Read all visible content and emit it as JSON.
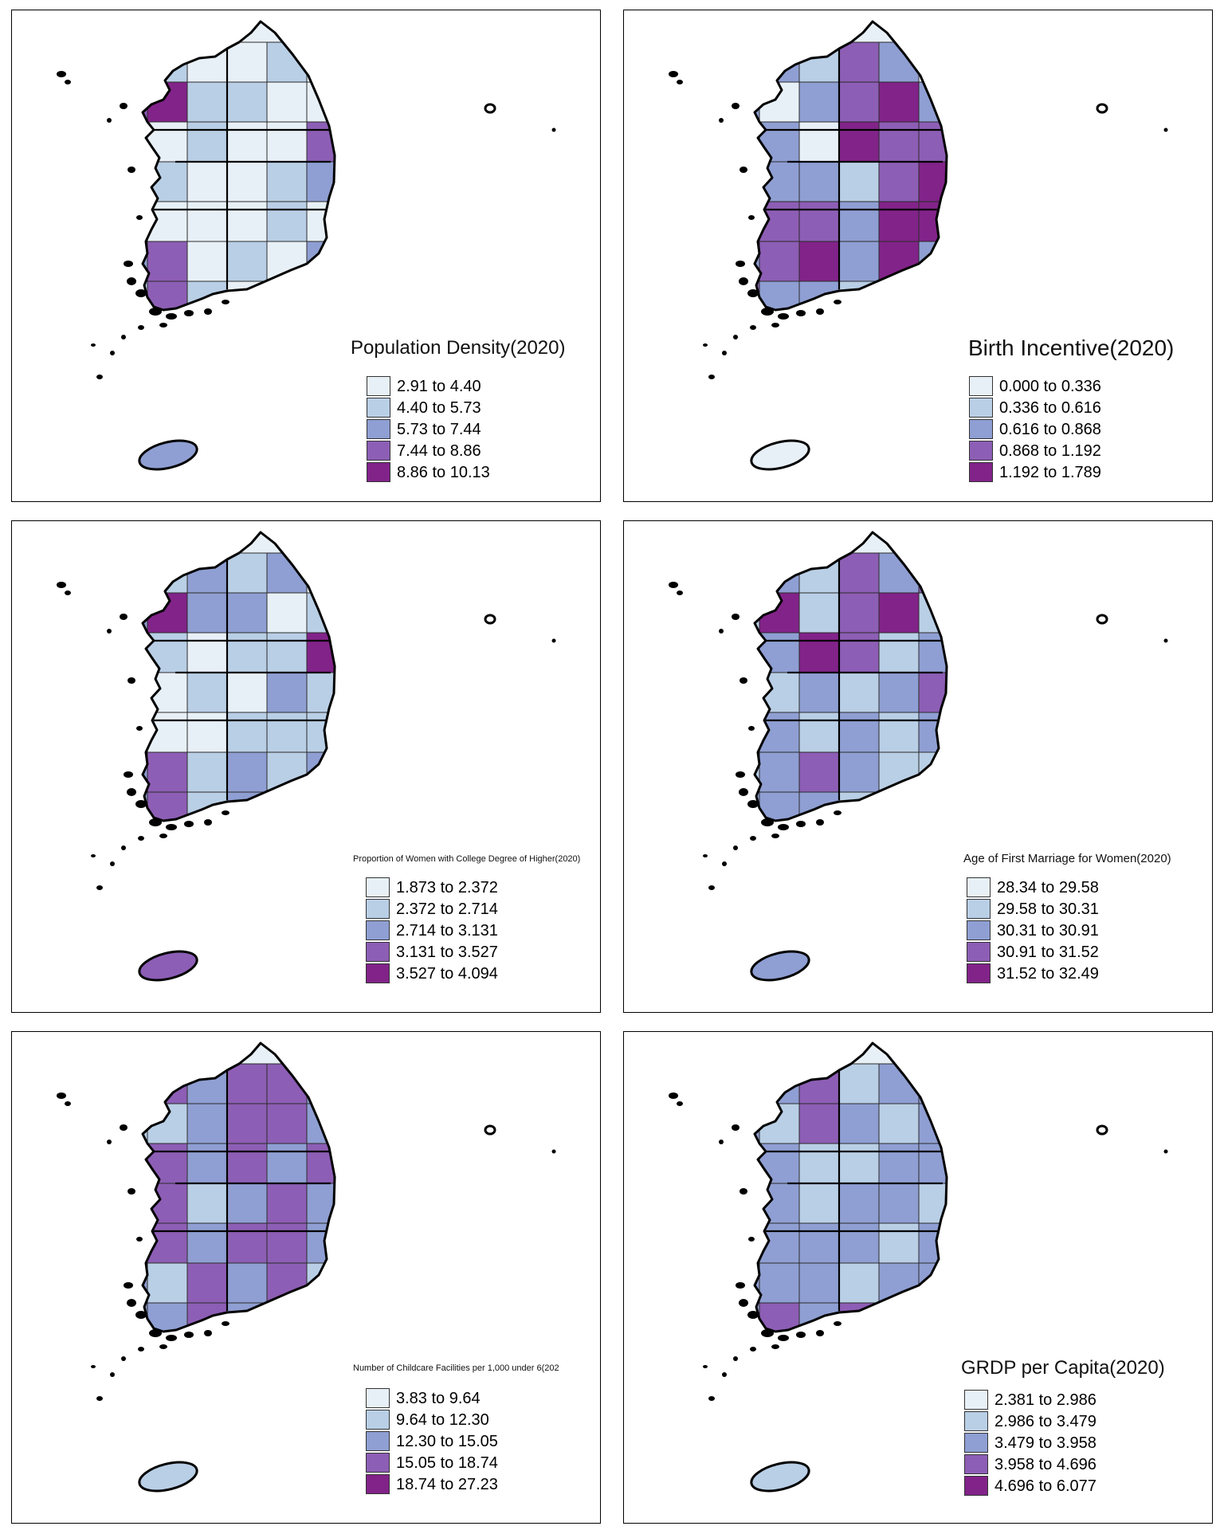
{
  "palette": [
    "#e8f0f7",
    "#b9cfe6",
    "#8f9fd3",
    "#8d5eb5",
    "#822389"
  ],
  "maps": [
    {
      "title": "Population Density(2020)",
      "legend": [
        "2.91 to 4.40",
        "4.40 to 5.73",
        "5.73 to 7.44",
        "7.44 to 8.86",
        "8.86 to 10.13"
      ],
      "regions": [
        1,
        0,
        0,
        1,
        0,
        3,
        4,
        1,
        1,
        0,
        0,
        1,
        0,
        1,
        0,
        0,
        3,
        1,
        0,
        0,
        1,
        2,
        1,
        0,
        0,
        0,
        1,
        0,
        2,
        3,
        0,
        1,
        0,
        2,
        1,
        3
      ],
      "jeju": 2
    },
    {
      "title": "Birth Incentive(2020)",
      "legend": [
        "0.000 to 0.336",
        "0.336 to 0.616",
        "0.616 to 0.868",
        "0.868 to 1.192",
        "1.192 to 1.789"
      ],
      "regions": [
        2,
        1,
        3,
        2,
        0,
        2,
        0,
        2,
        3,
        4,
        2,
        1,
        2,
        0,
        4,
        3,
        3,
        2,
        2,
        1,
        3,
        4,
        2,
        3,
        3,
        2,
        4,
        4,
        2,
        3,
        4,
        2,
        4,
        2,
        3,
        2
      ],
      "jeju": 0
    },
    {
      "title": "Proportion of Women with College Degree of Higher(2020)",
      "legend": [
        "1.873 to 2.372",
        "2.372 to 2.714",
        "2.714 to 3.131",
        "3.131 to 3.527",
        "3.527 to 4.094"
      ],
      "regions": [
        1,
        2,
        1,
        2,
        0,
        2,
        4,
        2,
        2,
        0,
        1,
        0,
        1,
        0,
        1,
        1,
        4,
        0,
        1,
        0,
        2,
        1,
        1,
        0,
        0,
        1,
        1,
        1,
        2,
        3,
        1,
        2,
        1,
        2,
        2,
        3
      ],
      "jeju": 3
    },
    {
      "title": "Age of First Marriage for Women(2020)",
      "legend": [
        "28.34 to 29.58",
        "29.58 to 30.31",
        "30.31 to 30.91",
        "30.91 to 31.52",
        "31.52 to 32.49"
      ],
      "regions": [
        2,
        1,
        3,
        2,
        3,
        1,
        4,
        1,
        3,
        4,
        1,
        2,
        2,
        4,
        3,
        1,
        2,
        1,
        2,
        1,
        2,
        3,
        4,
        2,
        1,
        2,
        1,
        2,
        1,
        2,
        3,
        2,
        1,
        1,
        2,
        2
      ],
      "jeju": 2
    },
    {
      "title": "Number of Childcare Facilities per 1,000 under 6(202",
      "legend": [
        "3.83 to 9.64",
        "9.64 to 12.30",
        "12.30 to 15.05",
        "15.05 to 18.74",
        "18.74 to 27.23"
      ],
      "regions": [
        3,
        2,
        3,
        3,
        2,
        1,
        1,
        2,
        3,
        3,
        2,
        2,
        3,
        2,
        3,
        2,
        3,
        3,
        1,
        2,
        3,
        2,
        2,
        3,
        2,
        3,
        3,
        2,
        2,
        1,
        3,
        2,
        3,
        1,
        2,
        2
      ],
      "jeju": 1
    },
    {
      "title": "GRDP per Capita(2020)",
      "legend": [
        "2.381 to 2.986",
        "2.986 to 3.479",
        "3.479 to 3.958",
        "3.958 to 4.696",
        "4.696 to 6.077"
      ],
      "regions": [
        2,
        3,
        1,
        2,
        2,
        2,
        1,
        3,
        2,
        1,
        2,
        2,
        2,
        1,
        1,
        2,
        2,
        2,
        1,
        2,
        2,
        1,
        3,
        2,
        2,
        2,
        1,
        2,
        2,
        2,
        2,
        1,
        2,
        2,
        2,
        3
      ],
      "jeju": 1
    }
  ]
}
